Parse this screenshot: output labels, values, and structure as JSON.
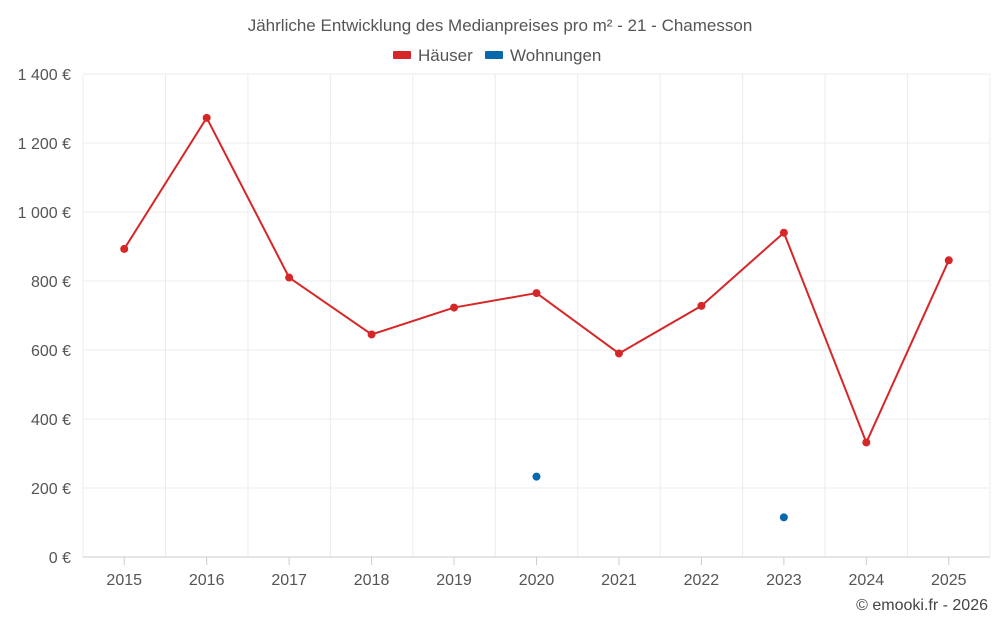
{
  "chart_data": {
    "type": "line",
    "title": "Jährliche Entwicklung des Medianpreises pro m² - 21 - Chamesson",
    "categories": [
      "2015",
      "2016",
      "2017",
      "2018",
      "2019",
      "2020",
      "2021",
      "2022",
      "2023",
      "2024",
      "2025"
    ],
    "series": [
      {
        "name": "Häuser",
        "color": "#d62728",
        "values": [
          893,
          1273,
          810,
          645,
          723,
          765,
          590,
          728,
          940,
          332,
          860
        ]
      },
      {
        "name": "Wohnungen",
        "color": "#0868ac",
        "values": [
          null,
          null,
          null,
          null,
          null,
          233,
          null,
          null,
          115,
          null,
          null
        ]
      }
    ],
    "yticks": [
      0,
      200,
      400,
      600,
      800,
      1000,
      1200,
      1400
    ],
    "ytick_labels": [
      "0 €",
      "200 €",
      "400 €",
      "600 €",
      "800 €",
      "1 000 €",
      "1 200 €",
      "1 400 €"
    ],
    "ylim": [
      0,
      1400
    ],
    "xlabel": "",
    "ylabel": "",
    "grid": true,
    "legend_position": "top-center"
  },
  "credit": "© emooki.fr - 2026"
}
